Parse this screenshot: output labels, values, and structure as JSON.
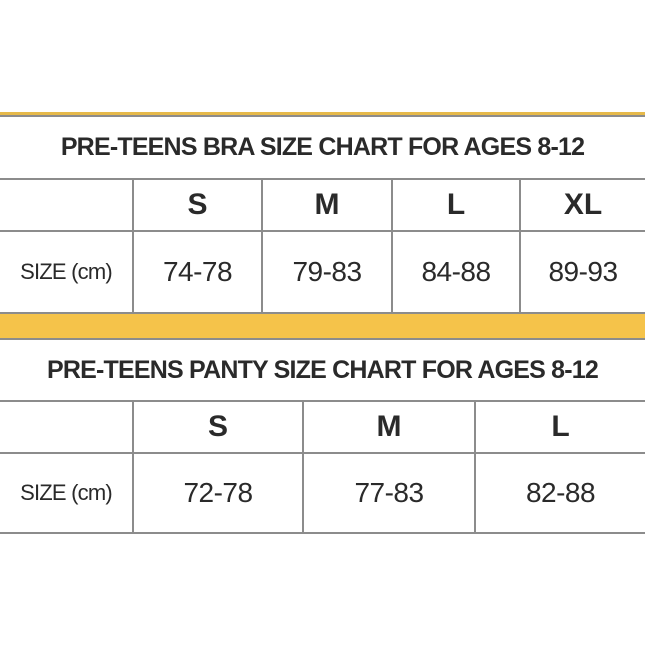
{
  "tables": [
    {
      "title": "PRE-TEENS BRA SIZE CHART FOR AGES 8-12",
      "header": [
        "S",
        "M",
        "L",
        "XL"
      ],
      "row": {
        "label": "SIZE (cm)",
        "cells": [
          "74-78",
          "79-83",
          "84-88",
          "89-93"
        ]
      }
    },
    {
      "title": "PRE-TEENS PANTY SIZE CHART FOR AGES 8-12",
      "header": [
        "S",
        "M",
        "L"
      ],
      "row": {
        "label": "SIZE (cm)",
        "cells": [
          "72-78",
          "77-83",
          "82-88"
        ]
      }
    }
  ]
}
